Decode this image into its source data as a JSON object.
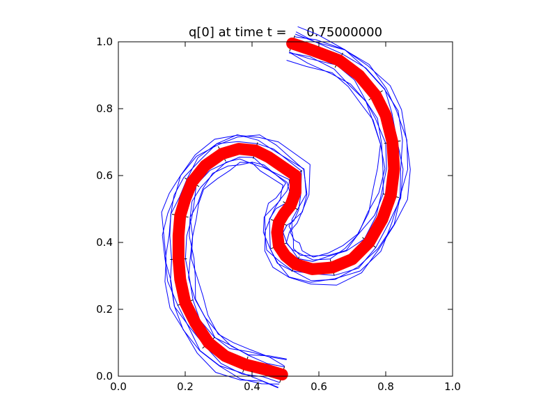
{
  "chart_data": {
    "type": "line",
    "title": "q[0] at time t =     0.75000000",
    "xlim": [
      0.0,
      1.0
    ],
    "ylim": [
      0.0,
      1.0
    ],
    "x_ticks": [
      "0.0",
      "0.2",
      "0.4",
      "0.6",
      "0.8",
      "1.0"
    ],
    "y_ticks": [
      "0.0",
      "0.2",
      "0.4",
      "0.6",
      "0.8",
      "1.0"
    ],
    "grid": false,
    "colors": {
      "red": "#ff0000",
      "blue": "#0000ff",
      "black": "#000000"
    },
    "series": [
      {
        "color": "red",
        "points": [
          [
            0.49,
            0.005
          ],
          [
            0.44,
            0.02
          ],
          [
            0.38,
            0.035
          ],
          [
            0.32,
            0.06
          ],
          [
            0.27,
            0.1
          ],
          [
            0.23,
            0.16
          ],
          [
            0.2,
            0.22
          ],
          [
            0.185,
            0.29
          ],
          [
            0.18,
            0.35
          ],
          [
            0.18,
            0.42
          ],
          [
            0.185,
            0.48
          ],
          [
            0.2,
            0.53
          ],
          [
            0.22,
            0.58
          ],
          [
            0.26,
            0.63
          ],
          [
            0.31,
            0.665
          ],
          [
            0.36,
            0.68
          ],
          [
            0.41,
            0.675
          ],
          [
            0.45,
            0.655
          ],
          [
            0.53,
            0.6
          ],
          [
            0.53,
            0.55
          ],
          [
            0.515,
            0.51
          ],
          [
            0.495,
            0.485
          ],
          [
            0.48,
            0.46
          ],
          [
            0.475,
            0.43
          ],
          [
            0.48,
            0.39
          ],
          [
            0.5,
            0.36
          ],
          [
            0.53,
            0.335
          ],
          [
            0.58,
            0.32
          ],
          [
            0.64,
            0.325
          ],
          [
            0.7,
            0.35
          ],
          [
            0.75,
            0.4
          ],
          [
            0.79,
            0.47
          ],
          [
            0.815,
            0.54
          ],
          [
            0.825,
            0.62
          ],
          [
            0.82,
            0.7
          ],
          [
            0.8,
            0.78
          ],
          [
            0.77,
            0.84
          ],
          [
            0.72,
            0.9
          ],
          [
            0.66,
            0.945
          ],
          [
            0.58,
            0.975
          ],
          [
            0.52,
            0.995
          ]
        ]
      }
    ],
    "contour_style": "blue contour lines around the red curve",
    "mesh_style": "black mesh edges partially visible along the curve"
  }
}
